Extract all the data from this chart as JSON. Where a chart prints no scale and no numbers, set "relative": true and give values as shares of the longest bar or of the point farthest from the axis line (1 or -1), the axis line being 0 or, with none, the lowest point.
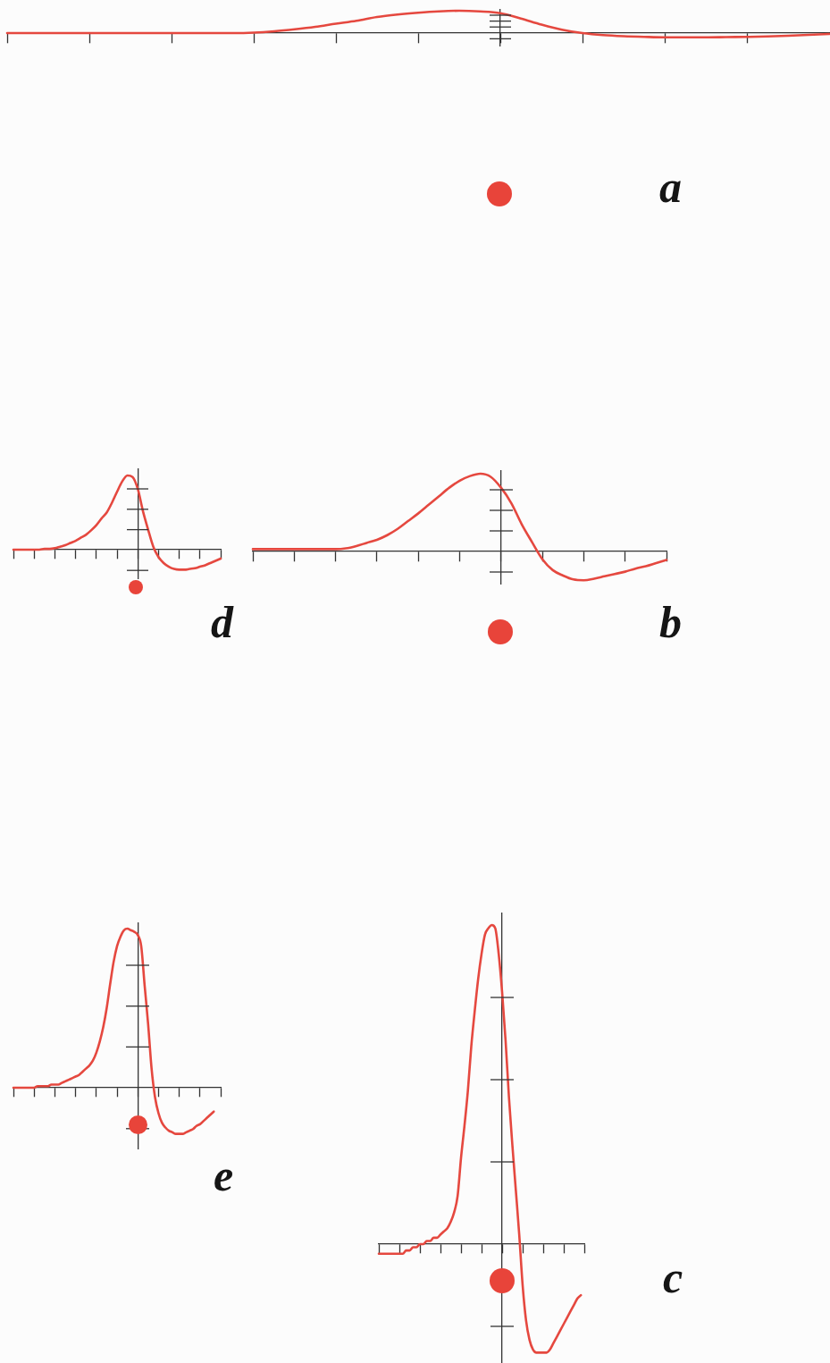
{
  "chart_data": [
    {
      "type": "line",
      "annotations": [
        "a"
      ],
      "relative": true,
      "color": "#e5483f",
      "categories": [
        null,
        null,
        null,
        null,
        null,
        null,
        null,
        null,
        null,
        null,
        null,
        null,
        null,
        null,
        null,
        null,
        null,
        null,
        null,
        null,
        null,
        null,
        null,
        null,
        null,
        null,
        null,
        null,
        null,
        null,
        null,
        null,
        null,
        null,
        null,
        null,
        null,
        null,
        null,
        null,
        null
      ],
      "values": [
        0,
        0,
        0,
        0,
        0,
        0,
        0,
        0,
        0,
        0,
        0,
        0,
        0.02,
        0.08,
        0.17,
        0.28,
        0.42,
        0.55,
        0.72,
        0.83,
        0.91,
        0.97,
        1,
        0.97,
        0.89,
        0.65,
        0.38,
        0.15,
        0,
        -0.09,
        -0.14,
        -0.17,
        -0.19,
        -0.19,
        -0.19,
        -0.18,
        -0.17,
        -0.15,
        -0.12,
        -0.08,
        -0.04
      ]
    },
    {
      "type": "line",
      "annotations": [
        "d"
      ],
      "relative": true,
      "color": "#e5483f",
      "categories": [
        null,
        null,
        null,
        null,
        null,
        null,
        null,
        null,
        null,
        null,
        null,
        null,
        null,
        null,
        null,
        null,
        null,
        null,
        null,
        null,
        null,
        null,
        null,
        null,
        null,
        null,
        null,
        null,
        null,
        null,
        null,
        null,
        null,
        null,
        null,
        null,
        null,
        null,
        null,
        null,
        null
      ],
      "values": [
        0,
        0,
        0,
        0,
        0,
        0,
        0.01,
        0.01,
        0.02,
        0.04,
        0.06,
        0.09,
        0.12,
        0.16,
        0.2,
        0.26,
        0.33,
        0.42,
        0.5,
        0.63,
        0.78,
        0.92,
        1,
        0.98,
        0.82,
        0.52,
        0.27,
        0.04,
        -0.1,
        -0.18,
        -0.23,
        -0.26,
        -0.27,
        -0.27,
        -0.26,
        -0.25,
        -0.23,
        -0.21,
        -0.18,
        -0.15,
        -0.12
      ]
    },
    {
      "type": "line",
      "annotations": [
        "b"
      ],
      "relative": true,
      "color": "#e5483f",
      "categories": [
        null,
        null,
        null,
        null,
        null,
        null,
        null,
        null,
        null,
        null,
        null,
        null,
        null,
        null,
        null,
        null,
        null,
        null,
        null,
        null,
        null,
        null,
        null,
        null,
        null,
        null,
        null,
        null,
        null,
        null,
        null,
        null,
        null,
        null,
        null,
        null,
        null,
        null,
        null,
        null,
        null
      ],
      "values": [
        0.03,
        0.03,
        0.03,
        0.03,
        0.03,
        0.03,
        0.03,
        0.03,
        0.03,
        0.04,
        0.07,
        0.11,
        0.15,
        0.21,
        0.29,
        0.39,
        0.49,
        0.6,
        0.71,
        0.82,
        0.91,
        0.97,
        1,
        0.96,
        0.82,
        0.62,
        0.35,
        0.12,
        -0.1,
        -0.24,
        -0.31,
        -0.36,
        -0.37,
        -0.35,
        -0.32,
        -0.29,
        -0.26,
        -0.22,
        -0.19,
        -0.15,
        -0.11
      ]
    },
    {
      "type": "line",
      "annotations": [
        "e"
      ],
      "relative": true,
      "color": "#e5483f",
      "categories": [
        null,
        null,
        null,
        null,
        null,
        null,
        null,
        null,
        null,
        null,
        null,
        null,
        null,
        null,
        null,
        null,
        null,
        null,
        null,
        null,
        null,
        null,
        null,
        null,
        null,
        null,
        null,
        null,
        null,
        null,
        null,
        null,
        null,
        null,
        null,
        null,
        null,
        null,
        null,
        null,
        null,
        null,
        null,
        null,
        null,
        null,
        null,
        null,
        null,
        null,
        null,
        null,
        null,
        null,
        null,
        null,
        null,
        null,
        null,
        null,
        null
      ],
      "values": [
        0,
        0,
        0,
        0,
        0,
        0,
        0,
        0.01,
        0.01,
        0.01,
        0.01,
        0.02,
        0.02,
        0.02,
        0.03,
        0.04,
        0.05,
        0.06,
        0.07,
        0.08,
        0.1,
        0.12,
        0.14,
        0.17,
        0.22,
        0.29,
        0.38,
        0.5,
        0.65,
        0.79,
        0.89,
        0.95,
        0.99,
        1,
        0.99,
        0.98,
        0.96,
        0.89,
        0.64,
        0.4,
        0.12,
        -0.06,
        -0.16,
        -0.22,
        -0.25,
        -0.27,
        -0.28,
        -0.29,
        -0.29,
        -0.29,
        -0.28,
        -0.27,
        -0.26,
        -0.24,
        -0.23,
        -0.21,
        -0.19,
        -0.17,
        -0.15,
        null,
        null
      ]
    },
    {
      "type": "line",
      "annotations": [
        "c"
      ],
      "relative": true,
      "color": "#e5483f",
      "categories": [
        null,
        null,
        null,
        null,
        null,
        null,
        null,
        null,
        null,
        null,
        null,
        null,
        null,
        null,
        null,
        null,
        null,
        null,
        null,
        null,
        null,
        null,
        null,
        null,
        null,
        null,
        null,
        null,
        null,
        null,
        null,
        null,
        null,
        null,
        null,
        null,
        null,
        null,
        null,
        null,
        null,
        null,
        null,
        null,
        null,
        null,
        null,
        null,
        null,
        null,
        null,
        null,
        null,
        null,
        null,
        null,
        null,
        null,
        null,
        null,
        null
      ],
      "values": [
        -0.03,
        -0.03,
        -0.03,
        -0.03,
        -0.03,
        -0.03,
        -0.03,
        -0.03,
        -0.02,
        -0.02,
        -0.01,
        -0.01,
        0,
        0,
        0.01,
        0.01,
        0.02,
        0.02,
        0.03,
        0.04,
        0.05,
        0.07,
        0.1,
        0.15,
        0.27,
        0.37,
        0.48,
        0.62,
        0.73,
        0.83,
        0.91,
        0.97,
        0.99,
        1,
        0.99,
        0.91,
        0.79,
        0.64,
        0.46,
        0.31,
        0.17,
        0.03,
        -0.13,
        -0.24,
        -0.3,
        -0.33,
        -0.34,
        -0.34,
        -0.34,
        -0.34,
        -0.33,
        -0.31,
        -0.29,
        -0.27,
        -0.25,
        -0.23,
        -0.21,
        -0.19,
        -0.17,
        -0.16,
        null
      ]
    }
  ]
}
